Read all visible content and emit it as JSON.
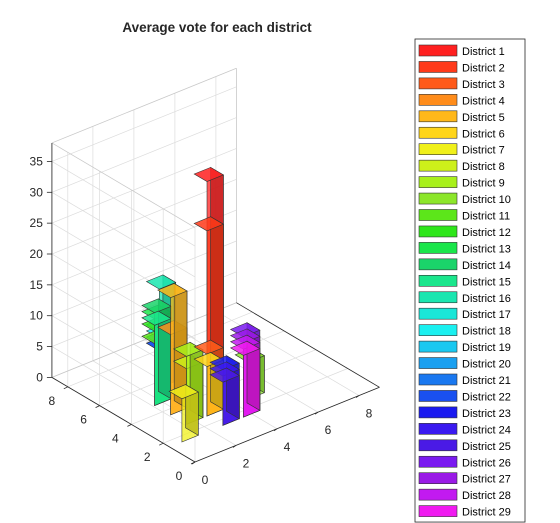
{
  "chart_data": {
    "type": "bar3",
    "title": "Average vote for each district",
    "x_ticks": [
      "0",
      "2",
      "4",
      "6",
      "8"
    ],
    "y_ticks": [
      "0",
      "2",
      "4",
      "6",
      "8"
    ],
    "z_ticks": [
      "0",
      "5",
      "10",
      "15",
      "20",
      "25",
      "30",
      "35"
    ],
    "xlim": [
      0,
      9
    ],
    "ylim": [
      0,
      9
    ],
    "zlim": [
      0,
      38
    ],
    "grid": true,
    "legend_position": "right",
    "series": [
      {
        "name": "District 1",
        "color": "#ff2020",
        "x": 3,
        "y": 3,
        "value": 38
      },
      {
        "name": "District 2",
        "color": "#ff3a1a",
        "x": 3,
        "y": 3,
        "value": 30
      },
      {
        "name": "District 3",
        "color": "#ff5a1a",
        "x": 3,
        "y": 3,
        "value": 10
      },
      {
        "name": "District 4",
        "color": "#ff8c1a",
        "x": 2,
        "y": 4,
        "value": 13
      },
      {
        "name": "District 5",
        "color": "#ffb81a",
        "x": 2,
        "y": 4,
        "value": 19
      },
      {
        "name": "District 6",
        "color": "#ffd51a",
        "x": 3,
        "y": 3,
        "value": 8
      },
      {
        "name": "District 7",
        "color": "#f0f01a",
        "x": 1,
        "y": 2,
        "value": 7
      },
      {
        "name": "District 8",
        "color": "#cdf01a",
        "x": 2,
        "y": 3,
        "value": 9
      },
      {
        "name": "District 9",
        "color": "#a8f01a",
        "x": 2,
        "y": 3,
        "value": 11
      },
      {
        "name": "District 10",
        "color": "#8ce62a",
        "x": 5,
        "y": 3,
        "value": 6
      },
      {
        "name": "District 11",
        "color": "#5ce61a",
        "x": 2,
        "y": 5,
        "value": 10
      },
      {
        "name": "District 12",
        "color": "#2ee61a",
        "x": 2,
        "y": 5,
        "value": 12
      },
      {
        "name": "District 13",
        "color": "#1ae64a",
        "x": 2,
        "y": 5,
        "value": 14
      },
      {
        "name": "District 14",
        "color": "#1ad46a",
        "x": 2,
        "y": 5,
        "value": 15
      },
      {
        "name": "District 15",
        "color": "#1ae68c",
        "x": 2,
        "y": 5,
        "value": 13
      },
      {
        "name": "District 16",
        "color": "#1ae6b0",
        "x": 3,
        "y": 6,
        "value": 16
      },
      {
        "name": "District 17",
        "color": "#1ae6d8",
        "x": 3,
        "y": 6,
        "value": 9
      },
      {
        "name": "District 18",
        "color": "#1af0f0",
        "x": 3,
        "y": 6,
        "value": 8
      },
      {
        "name": "District 19",
        "color": "#1ac8f0",
        "x": 3,
        "y": 6,
        "value": 7
      },
      {
        "name": "District 20",
        "color": "#1aa0f0",
        "x": 3,
        "y": 6,
        "value": 7
      },
      {
        "name": "District 21",
        "color": "#1a78f0",
        "x": 3,
        "y": 6,
        "value": 6
      },
      {
        "name": "District 22",
        "color": "#1a50f0",
        "x": 3,
        "y": 6,
        "value": 6
      },
      {
        "name": "District 23",
        "color": "#1a1af0",
        "x": 3,
        "y": 2,
        "value": 9
      },
      {
        "name": "District 24",
        "color": "#3a1af0",
        "x": 3,
        "y": 2,
        "value": 8
      },
      {
        "name": "District 25",
        "color": "#4a1ae6",
        "x": 3,
        "y": 2,
        "value": 7
      },
      {
        "name": "District 26",
        "color": "#7a1af0",
        "x": 4,
        "y": 2,
        "value": 13
      },
      {
        "name": "District 27",
        "color": "#9a1ae6",
        "x": 4,
        "y": 2,
        "value": 12
      },
      {
        "name": "District 28",
        "color": "#c21af0",
        "x": 4,
        "y": 2,
        "value": 11
      },
      {
        "name": "District 29",
        "color": "#f01af0",
        "x": 4,
        "y": 2,
        "value": 10
      }
    ]
  }
}
